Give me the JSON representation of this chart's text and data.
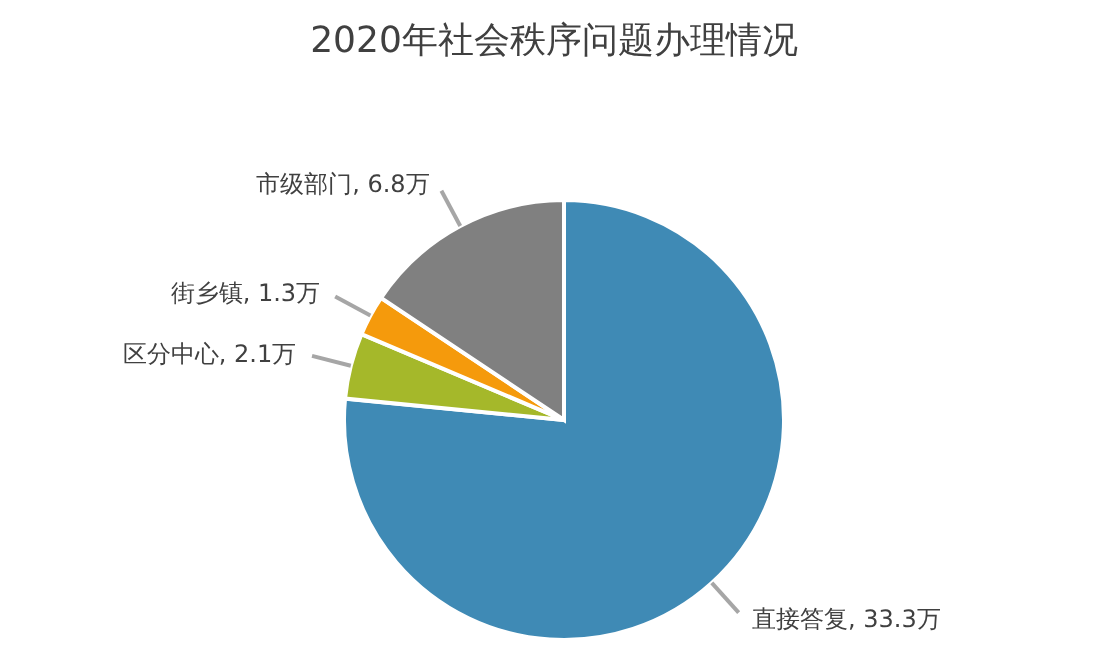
{
  "chart_data": {
    "type": "pie",
    "title": "2020年社会秩序问题办理情况",
    "categories": [
      "直接答复",
      "区分中心",
      "街乡镇",
      "市级部门"
    ],
    "values": [
      33.3,
      2.1,
      1.3,
      6.8
    ],
    "value_labels": [
      "33.3万",
      "2.1万",
      "1.3万",
      "6.8万"
    ],
    "colors": [
      "#3f8ab5",
      "#a5b82a",
      "#f59a0c",
      "#808080"
    ],
    "legend": false
  }
}
